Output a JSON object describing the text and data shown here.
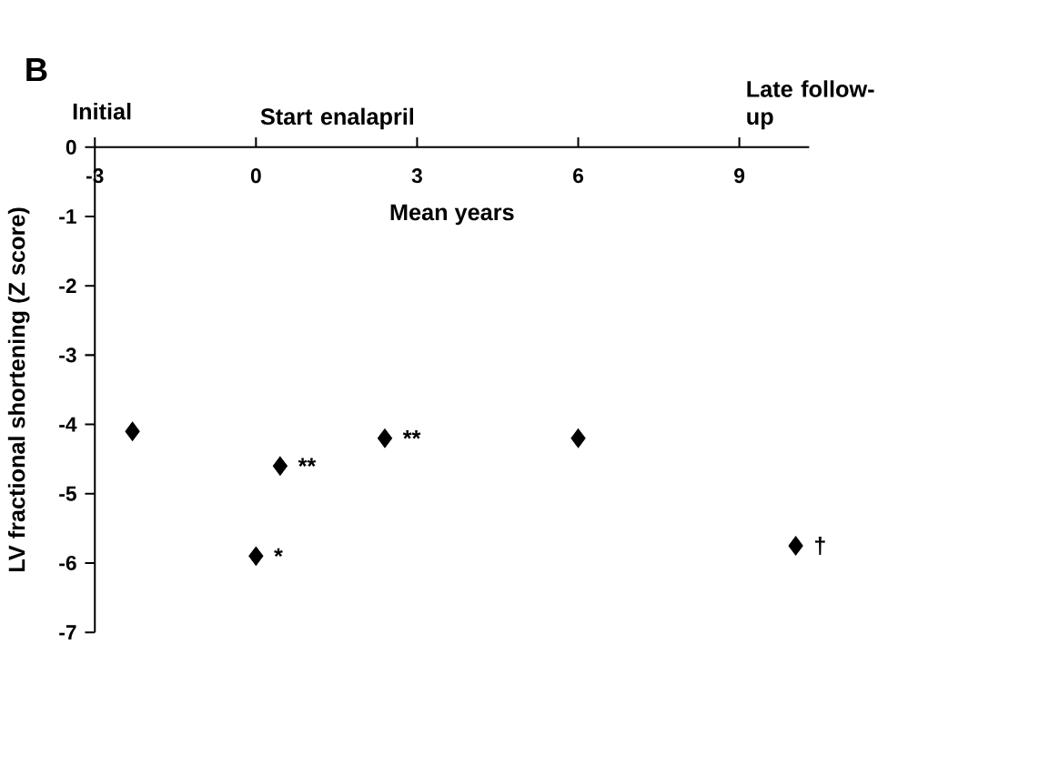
{
  "chart_data": {
    "type": "scatter",
    "xlabel": "Mean years",
    "ylabel": "LV fractional shortening (Z score)",
    "x": [
      -2.3,
      0,
      0.45,
      2.4,
      6.0,
      10.05
    ],
    "values": [
      -4.1,
      -5.9,
      -4.6,
      -4.2,
      -4.2,
      -5.75
    ],
    "color": "#000000",
    "marker": "diamond",
    "grid": false,
    "xlim": [
      -3,
      10.3
    ],
    "xticks": [
      -3,
      0,
      3,
      6,
      9
    ],
    "ylim": [
      -7,
      0
    ],
    "yticks": [
      -7,
      -6,
      -5,
      -4,
      -3,
      -2,
      -1,
      0
    ],
    "annotations": [
      "B",
      "Initial",
      "Start enalapril",
      "Late follow-up",
      {
        "text": "*",
        "x": 0,
        "y": -5.9
      },
      {
        "text": "**",
        "x": 0.45,
        "y": -4.6
      },
      {
        "text": "**",
        "x": 2.4,
        "y": -4.2
      },
      {
        "text": "†",
        "x": 10.05,
        "y": -5.75
      }
    ]
  }
}
